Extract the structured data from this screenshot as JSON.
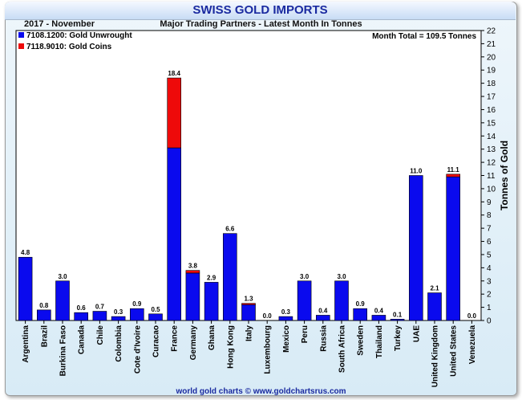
{
  "header": {
    "title": "SWISS GOLD IMPORTS",
    "period": "2017 - November",
    "subtitle": "Major Trading Partners - Latest Month In Tonnes"
  },
  "footer": {
    "credit": "world gold charts © www.goldchartsrus.com"
  },
  "colors": {
    "unwrought": "#0a0aee",
    "coins": "#ee0a0a"
  },
  "chart_data": {
    "type": "bar",
    "stacked": true,
    "title": "SWISS GOLD IMPORTS",
    "subtitle": "Major Trading Partners - Latest Month In Tonnes",
    "ylabel": "Tonnes of Gold",
    "ylim": [
      0,
      22
    ],
    "yticks": [
      0,
      1,
      2,
      3,
      4,
      5,
      6,
      7,
      8,
      9,
      10,
      11,
      12,
      13,
      14,
      15,
      16,
      17,
      18,
      19,
      20,
      21,
      22
    ],
    "grid": false,
    "legend": "top-left",
    "annotation": "Month Total = 109.5 Tonnes",
    "categories": [
      "Argentina",
      "Brazil",
      "Burkina Faso",
      "Canada",
      "Chile",
      "Colombia",
      "Cote d'Ivoire",
      "Curacao",
      "France",
      "Germany",
      "Ghana",
      "Hong Kong",
      "Italy",
      "Luxembourg",
      "Mexico",
      "Peru",
      "Russia",
      "South Africa",
      "Sweden",
      "Thailand",
      "Turkey",
      "UAE",
      "United Kingdom",
      "United States",
      "Venezuela"
    ],
    "series": [
      {
        "name": "7108.1200: Gold Unwrought",
        "color": "#0a0aee",
        "values": [
          4.8,
          0.8,
          3.0,
          0.6,
          0.7,
          0.3,
          0.9,
          0.5,
          13.1,
          3.6,
          2.9,
          6.6,
          1.2,
          0.0,
          0.3,
          3.0,
          0.4,
          3.0,
          0.9,
          0.4,
          0.1,
          11.0,
          2.1,
          10.9,
          0.0
        ]
      },
      {
        "name": "7118.9010: Gold Coins",
        "color": "#ee0a0a",
        "values": [
          0.0,
          0.0,
          0.0,
          0.0,
          0.0,
          0.0,
          0.0,
          0.0,
          5.3,
          0.2,
          0.0,
          0.0,
          0.1,
          0.0,
          0.0,
          0.0,
          0.0,
          0.0,
          0.0,
          0.0,
          0.0,
          0.0,
          0.0,
          0.2,
          0.0
        ]
      }
    ],
    "totals": [
      "4.8",
      "0.8",
      "3.0",
      "0.6",
      "0.7",
      "0.3",
      "0.9",
      "0.5",
      "18.4",
      "3.8",
      "2.9",
      "6.6",
      "1.3",
      "0.0",
      "0.3",
      "3.0",
      "0.4",
      "3.0",
      "0.9",
      "0.4",
      "0.1",
      "11.0",
      "2.1",
      "11.1",
      "0.0"
    ]
  }
}
